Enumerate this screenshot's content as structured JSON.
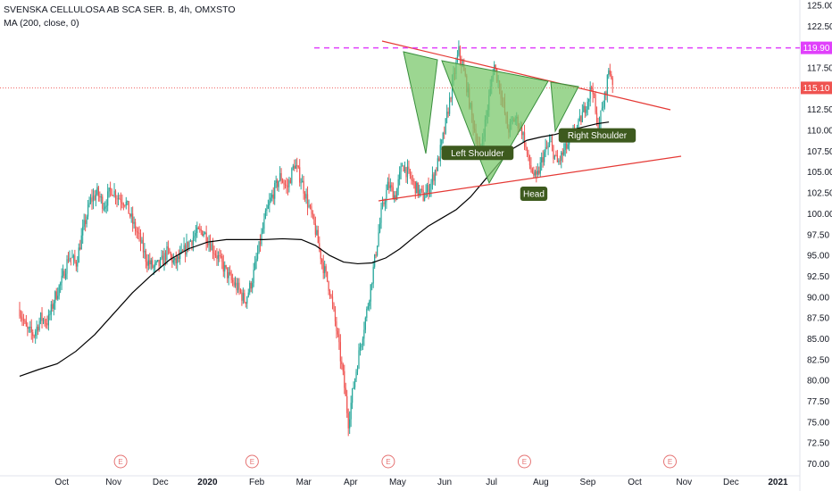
{
  "legend": {
    "symbol": "SVENSKA CELLULOSA AB SCA SER. B, 4h, OMXSTO",
    "indicator": "MA (200, close, 0)"
  },
  "chart_data": {
    "type": "candlestick",
    "ylim": [
      69,
      126
    ],
    "y_ticks": [
      "125.00",
      "122.50",
      "120.00",
      "117.50",
      "112.50",
      "110.00",
      "107.50",
      "105.00",
      "102.50",
      "100.00",
      "97.50",
      "95.00",
      "92.50",
      "90.00",
      "87.50",
      "85.00",
      "82.50",
      "80.00",
      "77.50",
      "75.00",
      "72.50",
      "70.00"
    ],
    "x_ticks": [
      {
        "label": "Oct",
        "t": 0.9,
        "bold": false
      },
      {
        "label": "Nov",
        "t": 2.0,
        "bold": false
      },
      {
        "label": "Dec",
        "t": 3.0,
        "bold": false
      },
      {
        "label": "2020",
        "t": 4.0,
        "bold": true
      },
      {
        "label": "Feb",
        "t": 5.05,
        "bold": false
      },
      {
        "label": "Mar",
        "t": 6.05,
        "bold": false
      },
      {
        "label": "Apr",
        "t": 7.05,
        "bold": false
      },
      {
        "label": "May",
        "t": 8.05,
        "bold": false
      },
      {
        "label": "Jun",
        "t": 9.05,
        "bold": false
      },
      {
        "label": "Jul",
        "t": 10.05,
        "bold": false
      },
      {
        "label": "Aug",
        "t": 11.1,
        "bold": false
      },
      {
        "label": "Sep",
        "t": 12.1,
        "bold": false
      },
      {
        "label": "Oct",
        "t": 13.1,
        "bold": false
      },
      {
        "label": "Nov",
        "t": 14.15,
        "bold": false
      },
      {
        "label": "Dec",
        "t": 15.15,
        "bold": false
      },
      {
        "label": "2021",
        "t": 16.15,
        "bold": true
      }
    ],
    "price_path": [
      [
        0.0,
        88.5
      ],
      [
        0.15,
        86.0
      ],
      [
        0.3,
        85.5
      ],
      [
        0.45,
        87.5
      ],
      [
        0.6,
        87.0
      ],
      [
        0.75,
        90.0
      ],
      [
        0.9,
        92.0
      ],
      [
        1.05,
        95.0
      ],
      [
        1.2,
        94.0
      ],
      [
        1.35,
        98.0
      ],
      [
        1.5,
        101.5
      ],
      [
        1.65,
        102.5
      ],
      [
        1.8,
        101.0
      ],
      [
        1.95,
        103.0
      ],
      [
        2.1,
        102.0
      ],
      [
        2.25,
        101.5
      ],
      [
        2.4,
        99.0
      ],
      [
        2.55,
        97.0
      ],
      [
        2.7,
        94.5
      ],
      [
        2.85,
        93.5
      ],
      [
        3.0,
        94.0
      ],
      [
        3.15,
        95.5
      ],
      [
        3.3,
        94.0
      ],
      [
        3.45,
        95.0
      ],
      [
        3.6,
        96.5
      ],
      [
        3.75,
        97.5
      ],
      [
        3.9,
        98.0
      ],
      [
        4.05,
        96.5
      ],
      [
        4.2,
        95.0
      ],
      [
        4.35,
        93.5
      ],
      [
        4.5,
        92.0
      ],
      [
        4.65,
        91.0
      ],
      [
        4.8,
        89.5
      ],
      [
        4.95,
        92.0
      ],
      [
        5.1,
        96.0
      ],
      [
        5.25,
        100.0
      ],
      [
        5.4,
        102.5
      ],
      [
        5.55,
        104.5
      ],
      [
        5.7,
        103.0
      ],
      [
        5.85,
        106.0
      ],
      [
        6.0,
        104.0
      ],
      [
        6.15,
        101.0
      ],
      [
        6.3,
        98.0
      ],
      [
        6.45,
        94.0
      ],
      [
        6.6,
        91.0
      ],
      [
        6.75,
        86.0
      ],
      [
        6.9,
        80.0
      ],
      [
        7.0,
        75.0
      ],
      [
        7.1,
        79.0
      ],
      [
        7.25,
        84.0
      ],
      [
        7.4,
        88.5
      ],
      [
        7.55,
        94.0
      ],
      [
        7.7,
        100.0
      ],
      [
        7.85,
        103.5
      ],
      [
        8.0,
        102.0
      ],
      [
        8.15,
        106.0
      ],
      [
        8.3,
        104.5
      ],
      [
        8.45,
        103.0
      ],
      [
        8.6,
        102.0
      ],
      [
        8.75,
        103.5
      ],
      [
        8.9,
        106.0
      ],
      [
        9.05,
        110.0
      ],
      [
        9.2,
        115.0
      ],
      [
        9.35,
        119.5
      ],
      [
        9.5,
        116.0
      ],
      [
        9.65,
        111.0
      ],
      [
        9.8,
        107.5
      ],
      [
        9.95,
        112.0
      ],
      [
        10.1,
        118.0
      ],
      [
        10.25,
        114.5
      ],
      [
        10.4,
        110.0
      ],
      [
        10.55,
        111.5
      ],
      [
        10.7,
        110.0
      ],
      [
        10.85,
        106.0
      ],
      [
        11.0,
        104.0
      ],
      [
        11.15,
        107.0
      ],
      [
        11.3,
        108.5
      ],
      [
        11.45,
        106.0
      ],
      [
        11.6,
        107.5
      ],
      [
        11.75,
        109.0
      ],
      [
        11.9,
        110.5
      ],
      [
        12.05,
        113.0
      ],
      [
        12.2,
        115.5
      ],
      [
        12.3,
        110.0
      ],
      [
        12.45,
        113.5
      ],
      [
        12.55,
        117.5
      ],
      [
        12.65,
        115.5
      ]
    ],
    "ma200": [
      [
        0.0,
        80.5
      ],
      [
        0.4,
        81.3
      ],
      [
        0.8,
        82.0
      ],
      [
        1.2,
        83.5
      ],
      [
        1.6,
        85.5
      ],
      [
        2.0,
        88.0
      ],
      [
        2.4,
        90.5
      ],
      [
        2.8,
        92.6
      ],
      [
        3.2,
        94.5
      ],
      [
        3.6,
        95.8
      ],
      [
        4.0,
        96.6
      ],
      [
        4.4,
        96.9
      ],
      [
        4.8,
        96.9
      ],
      [
        5.2,
        96.9
      ],
      [
        5.6,
        97.0
      ],
      [
        6.0,
        96.9
      ],
      [
        6.3,
        96.2
      ],
      [
        6.6,
        95.0
      ],
      [
        6.9,
        94.2
      ],
      [
        7.2,
        94.0
      ],
      [
        7.5,
        94.1
      ],
      [
        7.8,
        94.7
      ],
      [
        8.1,
        95.8
      ],
      [
        8.4,
        97.2
      ],
      [
        8.7,
        98.5
      ],
      [
        9.0,
        99.5
      ],
      [
        9.3,
        100.5
      ],
      [
        9.6,
        102.0
      ],
      [
        9.9,
        104.0
      ],
      [
        10.2,
        106.0
      ],
      [
        10.5,
        107.8
      ],
      [
        10.8,
        108.8
      ],
      [
        11.1,
        109.2
      ],
      [
        11.4,
        109.5
      ],
      [
        11.7,
        110.0
      ],
      [
        12.0,
        110.4
      ],
      [
        12.3,
        110.8
      ],
      [
        12.55,
        111.0
      ]
    ],
    "annotations": [
      {
        "text": "Left Shoulder",
        "t": 9.75,
        "price": 107.3
      },
      {
        "text": "Head",
        "t": 10.95,
        "price": 102.4
      },
      {
        "text": "Right Shoulder",
        "t": 12.3,
        "price": 109.4
      }
    ],
    "price_tags": [
      {
        "text": "119.90",
        "price": 119.9,
        "color": "#e040fb"
      },
      {
        "text": "115.10",
        "price": 115.1,
        "color": "#ef5350"
      }
    ],
    "earnings_markers": [
      {
        "label": "E",
        "t": 2.15
      },
      {
        "label": "E",
        "t": 4.95
      },
      {
        "label": "E",
        "t": 7.85
      },
      {
        "label": "E",
        "t": 10.75
      },
      {
        "label": "E",
        "t": 13.85
      }
    ],
    "colors": {
      "up": "#26a69a",
      "down": "#ef5350",
      "ma": "#000000",
      "trend": "#e53935",
      "resistance": "#e040fb",
      "pattern_fill": "#7bc86c",
      "pattern_stroke": "#388e3c",
      "label_bg": "#3d5a1e"
    }
  }
}
